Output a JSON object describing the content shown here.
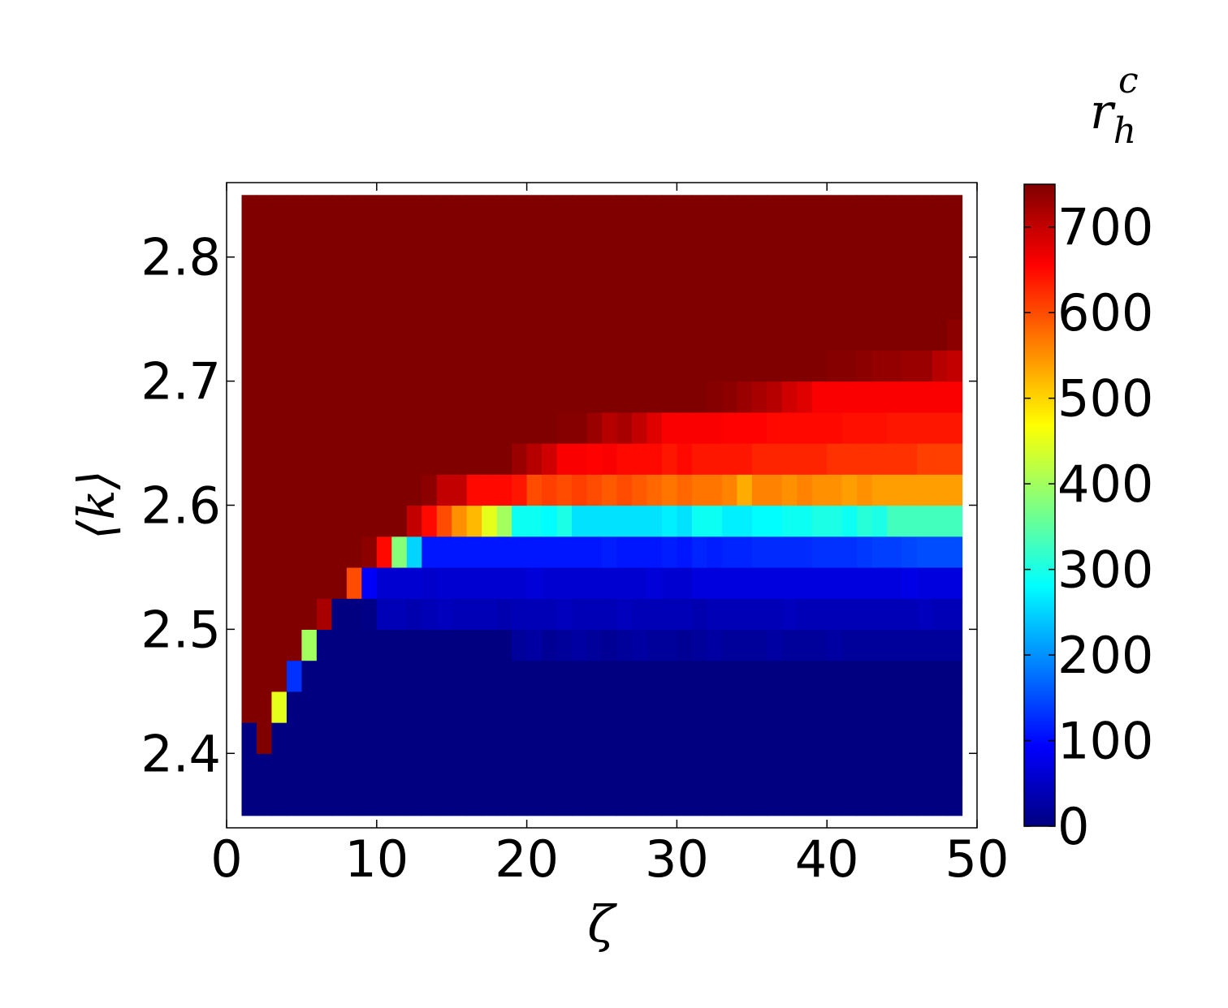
{
  "chart_data": {
    "type": "heatmap",
    "x_label": "ζ",
    "y_label": "⟨k⟩",
    "colorbar_label": {
      "base": "r",
      "sub": "h",
      "sup": "c"
    },
    "colormap": "jet",
    "xlim": [
      0,
      50
    ],
    "xticks": [
      0,
      10,
      20,
      30,
      40,
      50
    ],
    "ylim": [
      2.34,
      2.86
    ],
    "yticks": [
      2.4,
      2.5,
      2.6,
      2.7,
      2.8
    ],
    "clim": [
      0,
      750
    ],
    "cticks": [
      0,
      100,
      200,
      300,
      400,
      500,
      600,
      700
    ],
    "x_edges": [
      1,
      2,
      3,
      4,
      5,
      6,
      7,
      8,
      9,
      10,
      11,
      12,
      13,
      14,
      15,
      16,
      17,
      18,
      19,
      20,
      21,
      22,
      23,
      24,
      25,
      26,
      27,
      28,
      29,
      30,
      31,
      32,
      33,
      34,
      35,
      36,
      37,
      38,
      39,
      40,
      41,
      42,
      43,
      44,
      45,
      46,
      47,
      48,
      49
    ],
    "y_edges": [
      2.35,
      2.375,
      2.4,
      2.425,
      2.45,
      2.475,
      2.5,
      2.525,
      2.55,
      2.575,
      2.6,
      2.625,
      2.65,
      2.675,
      2.7,
      2.725,
      2.75,
      2.775,
      2.8,
      2.825,
      2.85
    ],
    "values": [
      [
        0,
        0,
        0,
        0,
        0,
        0,
        0,
        0,
        0,
        0,
        0,
        0,
        0,
        0,
        0,
        0,
        0,
        0,
        0,
        0,
        0,
        0,
        0,
        0,
        0,
        0,
        0,
        0,
        0,
        0,
        0,
        0,
        0,
        0,
        0,
        0,
        0,
        0,
        0,
        0,
        0,
        0,
        0,
        0,
        0,
        0,
        0,
        0
      ],
      [
        0,
        0,
        0,
        0,
        0,
        0,
        0,
        0,
        0,
        0,
        0,
        0,
        0,
        0,
        0,
        0,
        0,
        0,
        0,
        0,
        0,
        0,
        0,
        0,
        0,
        0,
        0,
        0,
        0,
        0,
        0,
        0,
        0,
        0,
        0,
        0,
        0,
        0,
        0,
        0,
        0,
        0,
        0,
        0,
        0,
        0,
        0,
        0
      ],
      [
        0,
        750,
        0,
        0,
        0,
        0,
        0,
        0,
        0,
        0,
        0,
        0,
        0,
        0,
        0,
        0,
        0,
        0,
        0,
        0,
        0,
        0,
        0,
        0,
        0,
        0,
        0,
        0,
        0,
        0,
        0,
        0,
        0,
        0,
        0,
        0,
        0,
        0,
        0,
        0,
        0,
        0,
        0,
        0,
        0,
        0,
        0,
        0
      ],
      [
        750,
        750,
        450,
        0,
        0,
        0,
        0,
        0,
        0,
        0,
        0,
        0,
        0,
        0,
        0,
        0,
        0,
        0,
        0,
        0,
        0,
        0,
        0,
        0,
        0,
        0,
        0,
        0,
        0,
        0,
        0,
        0,
        0,
        0,
        0,
        0,
        0,
        0,
        0,
        0,
        0,
        0,
        0,
        0,
        0,
        0,
        0,
        0
      ],
      [
        750,
        750,
        750,
        130,
        0,
        0,
        0,
        0,
        0,
        0,
        0,
        0,
        0,
        0,
        0,
        0,
        0,
        0,
        0,
        0,
        0,
        0,
        0,
        0,
        0,
        0,
        0,
        0,
        0,
        0,
        0,
        0,
        0,
        0,
        0,
        0,
        0,
        0,
        0,
        0,
        0,
        0,
        0,
        0,
        0,
        0,
        0,
        0
      ],
      [
        750,
        750,
        750,
        750,
        400,
        0,
        0,
        0,
        0,
        0,
        0,
        0,
        0,
        0,
        0,
        0,
        0,
        0,
        20,
        25,
        15,
        20,
        25,
        20,
        15,
        20,
        25,
        20,
        20,
        15,
        20,
        25,
        20,
        20,
        20,
        25,
        20,
        20,
        20,
        25,
        20,
        20,
        20,
        20,
        20,
        20,
        20,
        20
      ],
      [
        750,
        750,
        750,
        750,
        750,
        720,
        0,
        0,
        5,
        40,
        40,
        35,
        40,
        45,
        40,
        40,
        40,
        35,
        40,
        40,
        40,
        45,
        40,
        40,
        40,
        45,
        40,
        40,
        40,
        40,
        35,
        40,
        40,
        40,
        40,
        40,
        45,
        40,
        40,
        40,
        40,
        40,
        40,
        40,
        40,
        45,
        40,
        40
      ],
      [
        750,
        750,
        750,
        750,
        750,
        750,
        750,
        600,
        90,
        60,
        60,
        60,
        55,
        60,
        60,
        60,
        60,
        60,
        60,
        65,
        60,
        60,
        60,
        60,
        60,
        60,
        60,
        65,
        60,
        60,
        70,
        70,
        70,
        70,
        70,
        70,
        70,
        70,
        70,
        70,
        70,
        70,
        70,
        70,
        75,
        70,
        70,
        70
      ],
      [
        750,
        750,
        750,
        750,
        750,
        750,
        750,
        750,
        740,
        650,
        380,
        250,
        110,
        110,
        110,
        110,
        110,
        110,
        110,
        110,
        110,
        110,
        110,
        110,
        115,
        110,
        110,
        110,
        115,
        110,
        120,
        115,
        120,
        120,
        125,
        125,
        125,
        125,
        130,
        130,
        130,
        135,
        140,
        140,
        145,
        150,
        150,
        150
      ],
      [
        750,
        750,
        750,
        750,
        750,
        750,
        750,
        750,
        750,
        750,
        750,
        700,
        650,
        600,
        550,
        520,
        450,
        400,
        290,
        290,
        280,
        300,
        260,
        260,
        260,
        260,
        260,
        260,
        270,
        260,
        290,
        290,
        270,
        270,
        280,
        280,
        290,
        290,
        300,
        300,
        290,
        310,
        300,
        330,
        330,
        330,
        330,
        330
      ],
      [
        750,
        750,
        750,
        750,
        750,
        750,
        750,
        750,
        750,
        750,
        750,
        750,
        740,
        700,
        700,
        650,
        650,
        650,
        640,
        600,
        610,
        600,
        610,
        600,
        590,
        600,
        590,
        580,
        570,
        580,
        570,
        570,
        560,
        530,
        560,
        560,
        550,
        560,
        550,
        550,
        540,
        550,
        540,
        540,
        540,
        540,
        540,
        540
      ],
      [
        750,
        750,
        750,
        750,
        750,
        750,
        750,
        750,
        750,
        750,
        750,
        750,
        750,
        750,
        750,
        750,
        750,
        750,
        730,
        710,
        690,
        660,
        660,
        655,
        660,
        650,
        650,
        650,
        640,
        650,
        640,
        640,
        640,
        640,
        630,
        630,
        630,
        630,
        630,
        620,
        620,
        620,
        620,
        620,
        620,
        610,
        610,
        610
      ],
      [
        750,
        750,
        750,
        750,
        750,
        750,
        750,
        750,
        750,
        750,
        750,
        750,
        750,
        750,
        750,
        750,
        750,
        750,
        750,
        750,
        750,
        745,
        745,
        730,
        710,
        720,
        700,
        680,
        660,
        660,
        660,
        660,
        655,
        655,
        655,
        650,
        650,
        650,
        650,
        650,
        645,
        645,
        645,
        640,
        640,
        640,
        640,
        640
      ],
      [
        750,
        750,
        750,
        750,
        750,
        750,
        750,
        750,
        750,
        750,
        750,
        750,
        750,
        750,
        750,
        750,
        750,
        750,
        750,
        750,
        750,
        750,
        750,
        750,
        750,
        750,
        750,
        750,
        750,
        750,
        750,
        745,
        740,
        730,
        720,
        710,
        690,
        680,
        660,
        660,
        660,
        660,
        660,
        660,
        660,
        660,
        660,
        660
      ],
      [
        750,
        750,
        750,
        750,
        750,
        750,
        750,
        750,
        750,
        750,
        750,
        750,
        750,
        750,
        750,
        750,
        750,
        750,
        750,
        750,
        750,
        750,
        750,
        750,
        750,
        750,
        750,
        750,
        750,
        750,
        750,
        750,
        750,
        750,
        750,
        750,
        750,
        750,
        750,
        745,
        745,
        740,
        735,
        735,
        730,
        730,
        710,
        700
      ],
      [
        750,
        750,
        750,
        750,
        750,
        750,
        750,
        750,
        750,
        750,
        750,
        750,
        750,
        750,
        750,
        750,
        750,
        750,
        750,
        750,
        750,
        750,
        750,
        750,
        750,
        750,
        750,
        750,
        750,
        750,
        750,
        750,
        750,
        750,
        750,
        750,
        750,
        750,
        750,
        750,
        750,
        750,
        750,
        750,
        750,
        750,
        750,
        740
      ],
      [
        750,
        750,
        750,
        750,
        750,
        750,
        750,
        750,
        750,
        750,
        750,
        750,
        750,
        750,
        750,
        750,
        750,
        750,
        750,
        750,
        750,
        750,
        750,
        750,
        750,
        750,
        750,
        750,
        750,
        750,
        750,
        750,
        750,
        750,
        750,
        750,
        750,
        750,
        750,
        750,
        750,
        750,
        750,
        750,
        750,
        750,
        750,
        750
      ],
      [
        750,
        750,
        750,
        750,
        750,
        750,
        750,
        750,
        750,
        750,
        750,
        750,
        750,
        750,
        750,
        750,
        750,
        750,
        750,
        750,
        750,
        750,
        750,
        750,
        750,
        750,
        750,
        750,
        750,
        750,
        750,
        750,
        750,
        750,
        750,
        750,
        750,
        750,
        750,
        750,
        750,
        750,
        750,
        750,
        750,
        750,
        750,
        750
      ],
      [
        750,
        750,
        750,
        750,
        750,
        750,
        750,
        750,
        750,
        750,
        750,
        750,
        750,
        750,
        750,
        750,
        750,
        750,
        750,
        750,
        750,
        750,
        750,
        750,
        750,
        750,
        750,
        750,
        750,
        750,
        750,
        750,
        750,
        750,
        750,
        750,
        750,
        750,
        750,
        750,
        750,
        750,
        750,
        750,
        750,
        750,
        750,
        750
      ],
      [
        750,
        750,
        750,
        750,
        750,
        750,
        750,
        750,
        750,
        750,
        750,
        750,
        750,
        750,
        750,
        750,
        750,
        750,
        750,
        750,
        750,
        750,
        750,
        750,
        750,
        750,
        750,
        750,
        750,
        750,
        750,
        750,
        750,
        750,
        750,
        750,
        750,
        750,
        750,
        750,
        750,
        750,
        750,
        750,
        750,
        750,
        750,
        750
      ]
    ]
  }
}
